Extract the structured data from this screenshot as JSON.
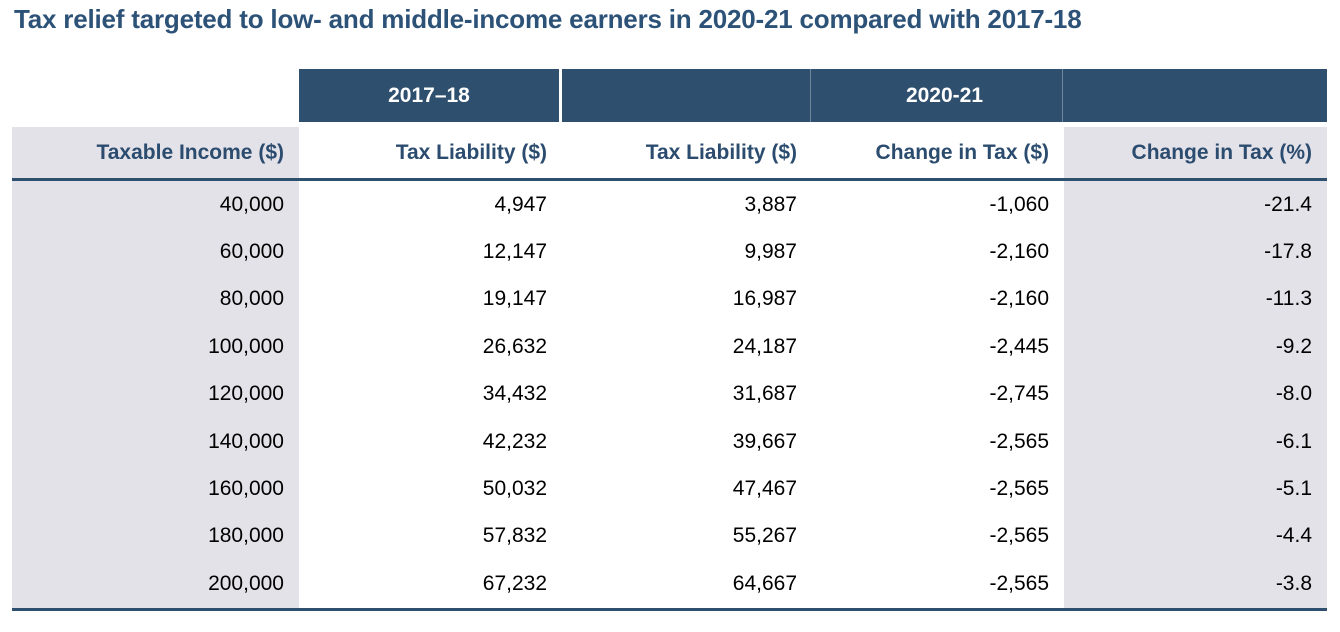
{
  "title": "Tax relief targeted to low- and middle-income earners in 2020-21 compared with 2017-18",
  "colors": {
    "navy": "#2f4f6e",
    "title_text": "#2d5278",
    "header_text": "#2b4c6e",
    "band_text": "#ffffff",
    "shaded_column": "#e4e2e9",
    "data_text": "#000000"
  },
  "table": {
    "band": {
      "col_2017": "2017–18",
      "col_2020": "2020-21"
    },
    "columns": [
      "Taxable Income ($)",
      "Tax Liability ($)",
      "Tax Liability ($)",
      "Change in Tax ($)",
      "Change in Tax (%)"
    ],
    "rows": [
      [
        "40,000",
        "4,947",
        "3,887",
        "-1,060",
        "-21.4"
      ],
      [
        "60,000",
        "12,147",
        "9,987",
        "-2,160",
        "-17.8"
      ],
      [
        "80,000",
        "19,147",
        "16,987",
        "-2,160",
        "-11.3"
      ],
      [
        "100,000",
        "26,632",
        "24,187",
        "-2,445",
        "-9.2"
      ],
      [
        "120,000",
        "34,432",
        "31,687",
        "-2,745",
        "-8.0"
      ],
      [
        "140,000",
        "42,232",
        "39,667",
        "-2,565",
        "-6.1"
      ],
      [
        "160,000",
        "50,032",
        "47,467",
        "-2,565",
        "-5.1"
      ],
      [
        "180,000",
        "57,832",
        "55,267",
        "-2,565",
        "-4.4"
      ],
      [
        "200,000",
        "67,232",
        "64,667",
        "-2,565",
        "-3.8"
      ]
    ]
  }
}
